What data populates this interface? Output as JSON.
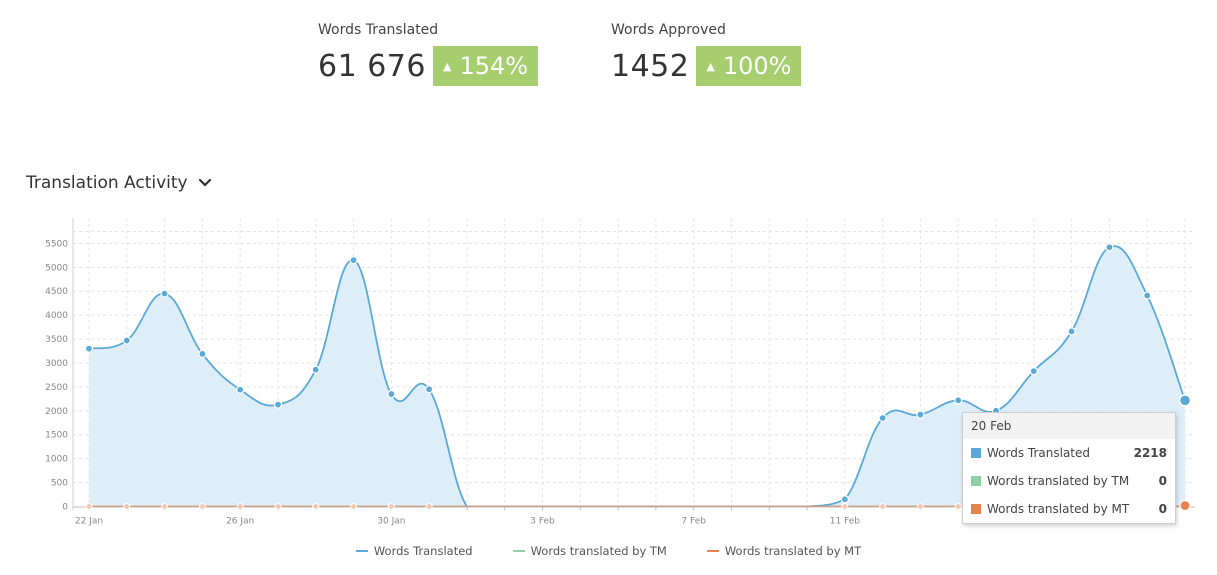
{
  "stats": {
    "translated": {
      "label": "Words Translated",
      "value": "61 676",
      "change": "154%"
    },
    "approved": {
      "label": "Words Approved",
      "value": "1452",
      "change": "100%"
    }
  },
  "section": {
    "title": "Translation Activity",
    "toggle_icon": "chevron-down-icon"
  },
  "colors": {
    "translated": "#5aa9d6",
    "tm": "#8ecfa6",
    "mt": "#e88350",
    "badge": "#a6cd6e",
    "area": "#dcedf8"
  },
  "chart_data": {
    "type": "area",
    "x": [
      "22 Jan",
      "23 Jan",
      "24 Jan",
      "25 Jan",
      "26 Jan",
      "27 Jan",
      "28 Jan",
      "29 Jan",
      "30 Jan",
      "31 Jan",
      "1 Feb",
      "2 Feb",
      "3 Feb",
      "4 Feb",
      "5 Feb",
      "6 Feb",
      "7 Feb",
      "8 Feb",
      "9 Feb",
      "10 Feb",
      "11 Feb",
      "12 Feb",
      "13 Feb",
      "14 Feb",
      "15 Feb",
      "16 Feb",
      "17 Feb",
      "18 Feb",
      "19 Feb",
      "20 Feb"
    ],
    "x_tick_labels": [
      "22 Jan",
      "",
      "",
      "",
      "26 Jan",
      "",
      "",
      "",
      "30 Jan",
      "",
      "",
      "",
      "3 Feb",
      "",
      "",
      "",
      "7 Feb",
      "",
      "",
      "",
      "11 Feb",
      "",
      "",
      "",
      "",
      "",
      "",
      "",
      "",
      ""
    ],
    "series": [
      {
        "name": "Words Translated",
        "values": [
          3300,
          3470,
          4450,
          3190,
          2440,
          2130,
          2860,
          5150,
          2350,
          2450,
          0,
          0,
          0,
          0,
          0,
          0,
          0,
          0,
          0,
          0,
          150,
          1850,
          1920,
          2220,
          2000,
          2830,
          3660,
          5420,
          4410,
          2218
        ]
      },
      {
        "name": "Words translated by TM",
        "values": [
          0,
          0,
          0,
          0,
          0,
          0,
          0,
          0,
          0,
          0,
          0,
          0,
          0,
          0,
          0,
          0,
          0,
          0,
          0,
          0,
          0,
          0,
          0,
          0,
          0,
          0,
          0,
          0,
          0,
          0
        ]
      },
      {
        "name": "Words translated by MT",
        "values": [
          0,
          0,
          0,
          0,
          0,
          0,
          0,
          0,
          0,
          0,
          0,
          0,
          0,
          0,
          0,
          0,
          0,
          0,
          0,
          0,
          0,
          0,
          0,
          0,
          0,
          0,
          0,
          0,
          0,
          0
        ]
      }
    ],
    "y_ticks": [
      0,
      500,
      1000,
      1500,
      2000,
      2500,
      3000,
      3500,
      4000,
      4500,
      5000,
      5500
    ],
    "ylim": [
      0,
      6000
    ],
    "grid": true,
    "legend": "bottom-center"
  },
  "tooltip": {
    "date": "20 Feb",
    "rows": [
      {
        "name": "Words Translated",
        "value": "2218"
      },
      {
        "name": "Words translated by TM",
        "value": "0"
      },
      {
        "name": "Words translated by MT",
        "value": "0"
      }
    ]
  }
}
